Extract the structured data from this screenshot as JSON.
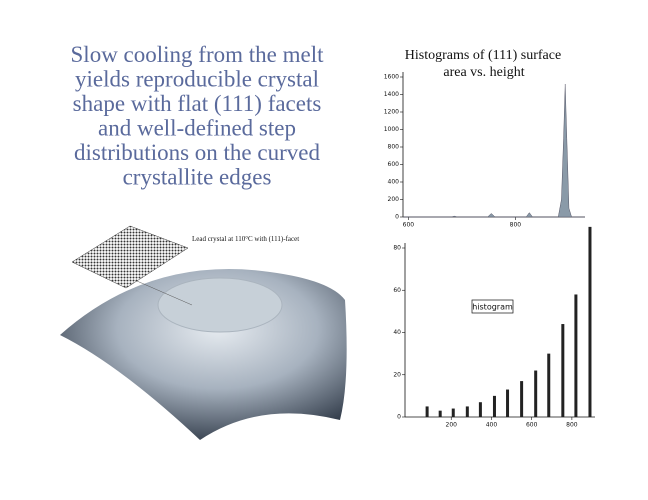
{
  "slide": {
    "heading": [
      "Slow cooling from the melt",
      "yields reproducible crystal",
      "shape with flat (111) facets",
      "and well-defined step",
      "distributions on the curved",
      "crystallite edges"
    ],
    "image_caption": "Lead crystal at 110°C with (111)-facet"
  },
  "chart_data": [
    {
      "type": "area",
      "title": [
        "Histograms of (111) surface",
        "area vs. height"
      ],
      "color": "#8a9aa8",
      "x": [
        590,
        680,
        686,
        692,
        748,
        755,
        762,
        820,
        826,
        832,
        880,
        886,
        890,
        893,
        896,
        900,
        905,
        930
      ],
      "values": [
        0,
        0,
        10,
        0,
        0,
        40,
        0,
        0,
        50,
        0,
        0,
        200,
        900,
        1520,
        900,
        100,
        0,
        0
      ],
      "xlim": [
        590,
        930
      ],
      "ylim": [
        0,
        1600
      ],
      "xticks": [
        600,
        800
      ],
      "yticks": [
        0,
        200,
        400,
        600,
        800,
        1000,
        1200,
        1400,
        1600
      ]
    },
    {
      "type": "spikes",
      "annotation": "histogram",
      "color": "#222222",
      "x": [
        80,
        145,
        210,
        280,
        345,
        415,
        480,
        550,
        620,
        685,
        755,
        820,
        890
      ],
      "values": [
        5,
        3,
        4,
        5,
        7,
        10,
        13,
        17,
        22,
        30,
        44,
        58,
        90
      ],
      "xlim": [
        -30,
        915
      ],
      "ylim": [
        0,
        80
      ],
      "xticks": [
        200,
        400,
        600,
        800
      ],
      "yticks": [
        0,
        20,
        40,
        60,
        80
      ]
    }
  ]
}
